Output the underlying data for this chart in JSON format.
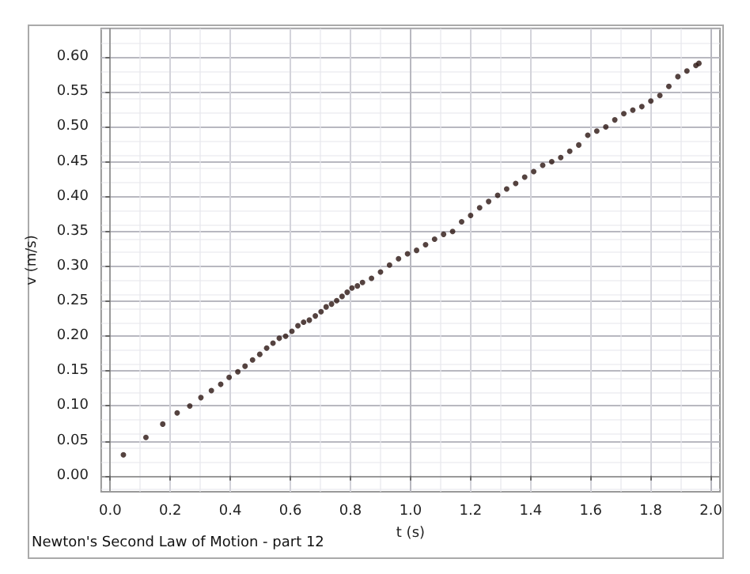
{
  "chart_data": {
    "type": "scatter",
    "xlabel": "t (s)",
    "ylabel": "v (m/s)",
    "annotations": [
      "Newton's Second Law of Motion - part 12"
    ],
    "x": [
      0.044,
      0.119,
      0.175,
      0.223,
      0.265,
      0.302,
      0.337,
      0.368,
      0.396,
      0.425,
      0.449,
      0.474,
      0.498,
      0.521,
      0.542,
      0.563,
      0.584,
      0.605,
      0.625,
      0.644,
      0.663,
      0.683,
      0.702,
      0.719,
      0.737,
      0.754,
      0.772,
      0.789,
      0.805,
      0.823,
      0.84,
      0.87,
      0.9,
      0.93,
      0.96,
      0.99,
      1.02,
      1.05,
      1.08,
      1.11,
      1.14,
      1.17,
      1.2,
      1.23,
      1.26,
      1.29,
      1.32,
      1.35,
      1.38,
      1.41,
      1.44,
      1.47,
      1.5,
      1.53,
      1.56,
      1.59,
      1.62,
      1.65,
      1.68,
      1.71,
      1.74,
      1.77,
      1.8,
      1.83,
      1.86,
      1.89,
      1.92,
      1.95,
      1.96
    ],
    "series": [
      {
        "color": "#2b1410",
        "values": [
          0.03,
          0.055,
          0.074,
          0.09,
          0.1,
          0.112,
          0.122,
          0.131,
          0.141,
          0.149,
          0.157,
          0.166,
          0.174,
          0.183,
          0.19,
          0.197,
          0.2,
          0.207,
          0.215,
          0.22,
          0.223,
          0.229,
          0.235,
          0.242,
          0.246,
          0.251,
          0.257,
          0.263,
          0.269,
          0.272,
          0.277,
          0.283,
          0.292,
          0.302,
          0.311,
          0.318,
          0.323,
          0.331,
          0.339,
          0.346,
          0.35,
          0.364,
          0.373,
          0.384,
          0.393,
          0.402,
          0.411,
          0.419,
          0.428,
          0.436,
          0.445,
          0.45,
          0.456,
          0.465,
          0.474,
          0.488,
          0.494,
          0.5,
          0.51,
          0.519,
          0.524,
          0.529,
          0.537,
          0.545,
          0.558,
          0.572,
          0.58,
          0.588,
          0.591
        ]
      }
    ],
    "xlim": [
      -0.03,
      2.03
    ],
    "ylim": [
      -0.023,
      0.641
    ],
    "xticks": [
      {
        "value": 0,
        "label": "0.0"
      },
      {
        "value": 0.2,
        "label": "0.2"
      },
      {
        "value": 0.4,
        "label": "0.4"
      },
      {
        "value": 0.6,
        "label": "0.6"
      },
      {
        "value": 0.8,
        "label": "0.8"
      },
      {
        "value": 1,
        "label": "1.0"
      },
      {
        "value": 1.2,
        "label": "1.2"
      },
      {
        "value": 1.4,
        "label": "1.4"
      },
      {
        "value": 1.6,
        "label": "1.6"
      },
      {
        "value": 1.8,
        "label": "1.8"
      },
      {
        "value": 2,
        "label": "2.0"
      }
    ],
    "yticks": [
      {
        "value": 0,
        "label": "0.00"
      },
      {
        "value": 0.05,
        "label": "0.05"
      },
      {
        "value": 0.1,
        "label": "0.10"
      },
      {
        "value": 0.15,
        "label": "0.15"
      },
      {
        "value": 0.2,
        "label": "0.20"
      },
      {
        "value": 0.25,
        "label": "0.25"
      },
      {
        "value": 0.3,
        "label": "0.30"
      },
      {
        "value": 0.35,
        "label": "0.35"
      },
      {
        "value": 0.4,
        "label": "0.40"
      },
      {
        "value": 0.45,
        "label": "0.45"
      },
      {
        "value": 0.5,
        "label": "0.50"
      },
      {
        "value": 0.55,
        "label": "0.55"
      },
      {
        "value": 0.6,
        "label": "0.60"
      }
    ],
    "grid": true,
    "marker": "circle"
  }
}
